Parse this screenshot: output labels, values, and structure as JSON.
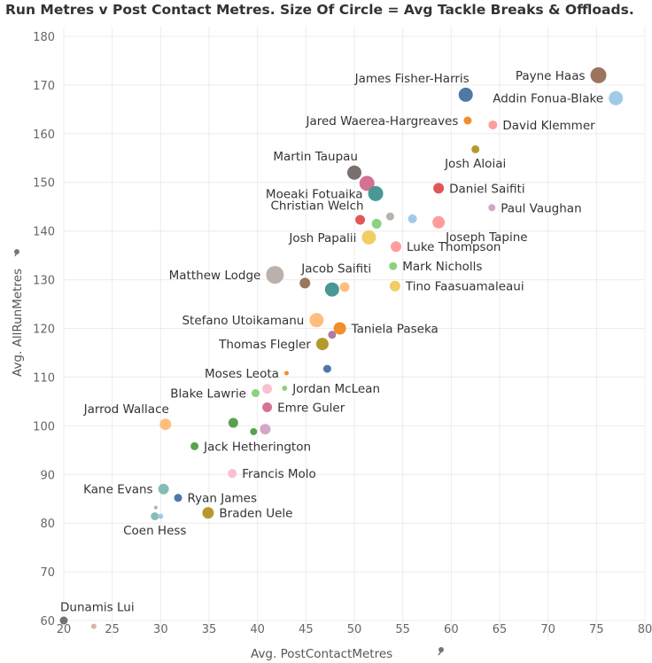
{
  "chart_data": {
    "type": "scatter",
    "title": "Run Metres v Post Contact Metres. Size Of Circle = Avg Tackle Breaks & Offloads.",
    "xlabel": "Avg. PostContactMetres",
    "ylabel": "Avg. AllRunMetres",
    "xlim": [
      20,
      80
    ],
    "ylim": [
      56,
      182
    ],
    "xticks": [
      20,
      25,
      30,
      35,
      40,
      45,
      50,
      55,
      60,
      65,
      70,
      75,
      80
    ],
    "yticks": [
      60,
      70,
      80,
      90,
      100,
      110,
      120,
      130,
      140,
      150,
      160,
      170,
      180
    ],
    "grid": true,
    "points": [
      {
        "x": 75.2,
        "y": 172.0,
        "size": 9,
        "color": "#9c755f",
        "label": "Payne Haas",
        "label_side": "left"
      },
      {
        "x": 61.5,
        "y": 168.0,
        "size": 8,
        "color": "#4e79a7",
        "label": "James Fisher-Harris",
        "label_side": "above-left"
      },
      {
        "x": 77.0,
        "y": 167.3,
        "size": 8,
        "color": "#a0cbe8",
        "label": "Addin Fonua-Blake",
        "label_side": "left"
      },
      {
        "x": 61.7,
        "y": 162.7,
        "size": 4.5,
        "color": "#f28e2b",
        "label": "Jared Waerea-Hargreaves",
        "label_side": "left"
      },
      {
        "x": 64.3,
        "y": 161.8,
        "size": 5,
        "color": "#ff9d9a",
        "label": "David Klemmer",
        "label_side": "right"
      },
      {
        "x": 62.5,
        "y": 156.8,
        "size": 4.5,
        "color": "#b6992d",
        "label": "Josh Aloiai",
        "label_side": "below"
      },
      {
        "x": 50.0,
        "y": 152.0,
        "size": 8,
        "color": "#79706e",
        "label": "Martin Taupau",
        "label_side": "above-left"
      },
      {
        "x": 51.3,
        "y": 149.8,
        "size": 8.5,
        "color": "#d37295",
        "label": "",
        "label_side": "none"
      },
      {
        "x": 58.7,
        "y": 148.8,
        "size": 6,
        "color": "#e15759",
        "label": "Daniel Saifiti",
        "label_side": "right"
      },
      {
        "x": 52.2,
        "y": 147.7,
        "size": 8.5,
        "color": "#499894",
        "label": "Moeaki Fotuaika",
        "label_side": "left"
      },
      {
        "x": 64.2,
        "y": 144.8,
        "size": 4,
        "color": "#d4a6c8",
        "label": "Paul Vaughan",
        "label_side": "right"
      },
      {
        "x": 50.6,
        "y": 142.3,
        "size": 5.5,
        "color": "#e15759",
        "label": "Christian Welch",
        "label_side": "above-left"
      },
      {
        "x": 52.3,
        "y": 141.5,
        "size": 5.5,
        "color": "#8cd17d",
        "label": "",
        "label_side": "none"
      },
      {
        "x": 53.7,
        "y": 143.0,
        "size": 4.5,
        "color": "#bab0ac",
        "label": "",
        "label_side": "none"
      },
      {
        "x": 56.0,
        "y": 142.5,
        "size": 5,
        "color": "#a0cbe8",
        "label": "",
        "label_side": "none"
      },
      {
        "x": 58.7,
        "y": 141.8,
        "size": 7,
        "color": "#ff9d9a",
        "label": "Joseph Tapine",
        "label_side": "below-right"
      },
      {
        "x": 51.5,
        "y": 138.7,
        "size": 8,
        "color": "#f1ce63",
        "label": "Josh Papalii",
        "label_side": "left"
      },
      {
        "x": 54.3,
        "y": 136.8,
        "size": 6,
        "color": "#ff9d9a",
        "label": "Luke Thompson",
        "label_side": "right"
      },
      {
        "x": 54.0,
        "y": 132.8,
        "size": 4.5,
        "color": "#8cd17d",
        "label": "Mark Nicholls",
        "label_side": "right"
      },
      {
        "x": 41.8,
        "y": 131.0,
        "size": 10,
        "color": "#bab0ac",
        "label": "Matthew Lodge",
        "label_side": "left"
      },
      {
        "x": 44.9,
        "y": 129.3,
        "size": 6,
        "color": "#9c755f",
        "label": "Jacob Saifiti",
        "label_side": "above-right"
      },
      {
        "x": 47.7,
        "y": 128.0,
        "size": 8,
        "color": "#499894",
        "label": "",
        "label_side": "none"
      },
      {
        "x": 49.0,
        "y": 128.5,
        "size": 5.5,
        "color": "#ffbe7d",
        "label": "",
        "label_side": "none"
      },
      {
        "x": 54.2,
        "y": 128.7,
        "size": 6,
        "color": "#f1ce63",
        "label": "Tino Faasuamaleaui",
        "label_side": "right"
      },
      {
        "x": 46.1,
        "y": 121.7,
        "size": 8,
        "color": "#ffbe7d",
        "label": "Stefano Utoikamanu",
        "label_side": "left"
      },
      {
        "x": 48.5,
        "y": 120.0,
        "size": 7,
        "color": "#f28e2b",
        "label": "Taniela Paseka",
        "label_side": "right"
      },
      {
        "x": 47.7,
        "y": 118.7,
        "size": 4.5,
        "color": "#b07aa1",
        "label": "",
        "label_side": "none"
      },
      {
        "x": 46.7,
        "y": 116.8,
        "size": 7,
        "color": "#b6992d",
        "label": "Thomas Flegler",
        "label_side": "left"
      },
      {
        "x": 47.2,
        "y": 111.7,
        "size": 4.5,
        "color": "#4e79a7",
        "label": "",
        "label_side": "none"
      },
      {
        "x": 43.0,
        "y": 110.8,
        "size": 2.5,
        "color": "#f28e2b",
        "label": "Moses Leota",
        "label_side": "left"
      },
      {
        "x": 41.0,
        "y": 107.6,
        "size": 5.5,
        "color": "#fabfd2",
        "label": "",
        "label_side": "none"
      },
      {
        "x": 39.8,
        "y": 106.7,
        "size": 4.5,
        "color": "#8cd17d",
        "label": "Blake Lawrie",
        "label_side": "left"
      },
      {
        "x": 42.8,
        "y": 107.7,
        "size": 3,
        "color": "#8cd17d",
        "label": "Jordan McLean",
        "label_side": "right"
      },
      {
        "x": 41.0,
        "y": 103.8,
        "size": 5.5,
        "color": "#d37295",
        "label": "Emre Guler",
        "label_side": "right"
      },
      {
        "x": 30.5,
        "y": 100.3,
        "size": 6.5,
        "color": "#ffbe7d",
        "label": "Jarrod Wallace",
        "label_side": "above-left"
      },
      {
        "x": 37.5,
        "y": 100.6,
        "size": 5.5,
        "color": "#59a14f",
        "label": "",
        "label_side": "none"
      },
      {
        "x": 39.6,
        "y": 98.8,
        "size": 4,
        "color": "#59a14f",
        "label": "",
        "label_side": "none"
      },
      {
        "x": 40.8,
        "y": 99.3,
        "size": 6,
        "color": "#d4a6c8",
        "label": "",
        "label_side": "none"
      },
      {
        "x": 33.5,
        "y": 95.8,
        "size": 4.5,
        "color": "#59a14f",
        "label": "Jack Hetherington",
        "label_side": "right"
      },
      {
        "x": 37.4,
        "y": 90.2,
        "size": 5,
        "color": "#fabfd2",
        "label": "Francis Molo",
        "label_side": "right"
      },
      {
        "x": 30.3,
        "y": 87.0,
        "size": 6,
        "color": "#86bcb6",
        "label": "Kane Evans",
        "label_side": "left"
      },
      {
        "x": 31.8,
        "y": 85.2,
        "size": 4.5,
        "color": "#4e79a7",
        "label": "Ryan James",
        "label_side": "right"
      },
      {
        "x": 29.5,
        "y": 83.2,
        "size": 2,
        "color": "#bab0ac",
        "label": "",
        "label_side": "none"
      },
      {
        "x": 29.4,
        "y": 81.4,
        "size": 4.5,
        "color": "#86bcb6",
        "label": "Coen Hess",
        "label_side": "below"
      },
      {
        "x": 30.0,
        "y": 81.4,
        "size": 3,
        "color": "#a0cbe8",
        "label": "",
        "label_side": "none"
      },
      {
        "x": 34.9,
        "y": 82.1,
        "size": 6.5,
        "color": "#b6992d",
        "label": "Braden Uele",
        "label_side": "right"
      },
      {
        "x": 20.0,
        "y": 60.0,
        "size": 4.5,
        "color": "#79706e",
        "label": "Dunamis Lui",
        "label_side": "above-right"
      },
      {
        "x": 23.1,
        "y": 58.8,
        "size": 3,
        "color": "#d7b5a6",
        "label": "",
        "label_side": "none"
      }
    ]
  }
}
